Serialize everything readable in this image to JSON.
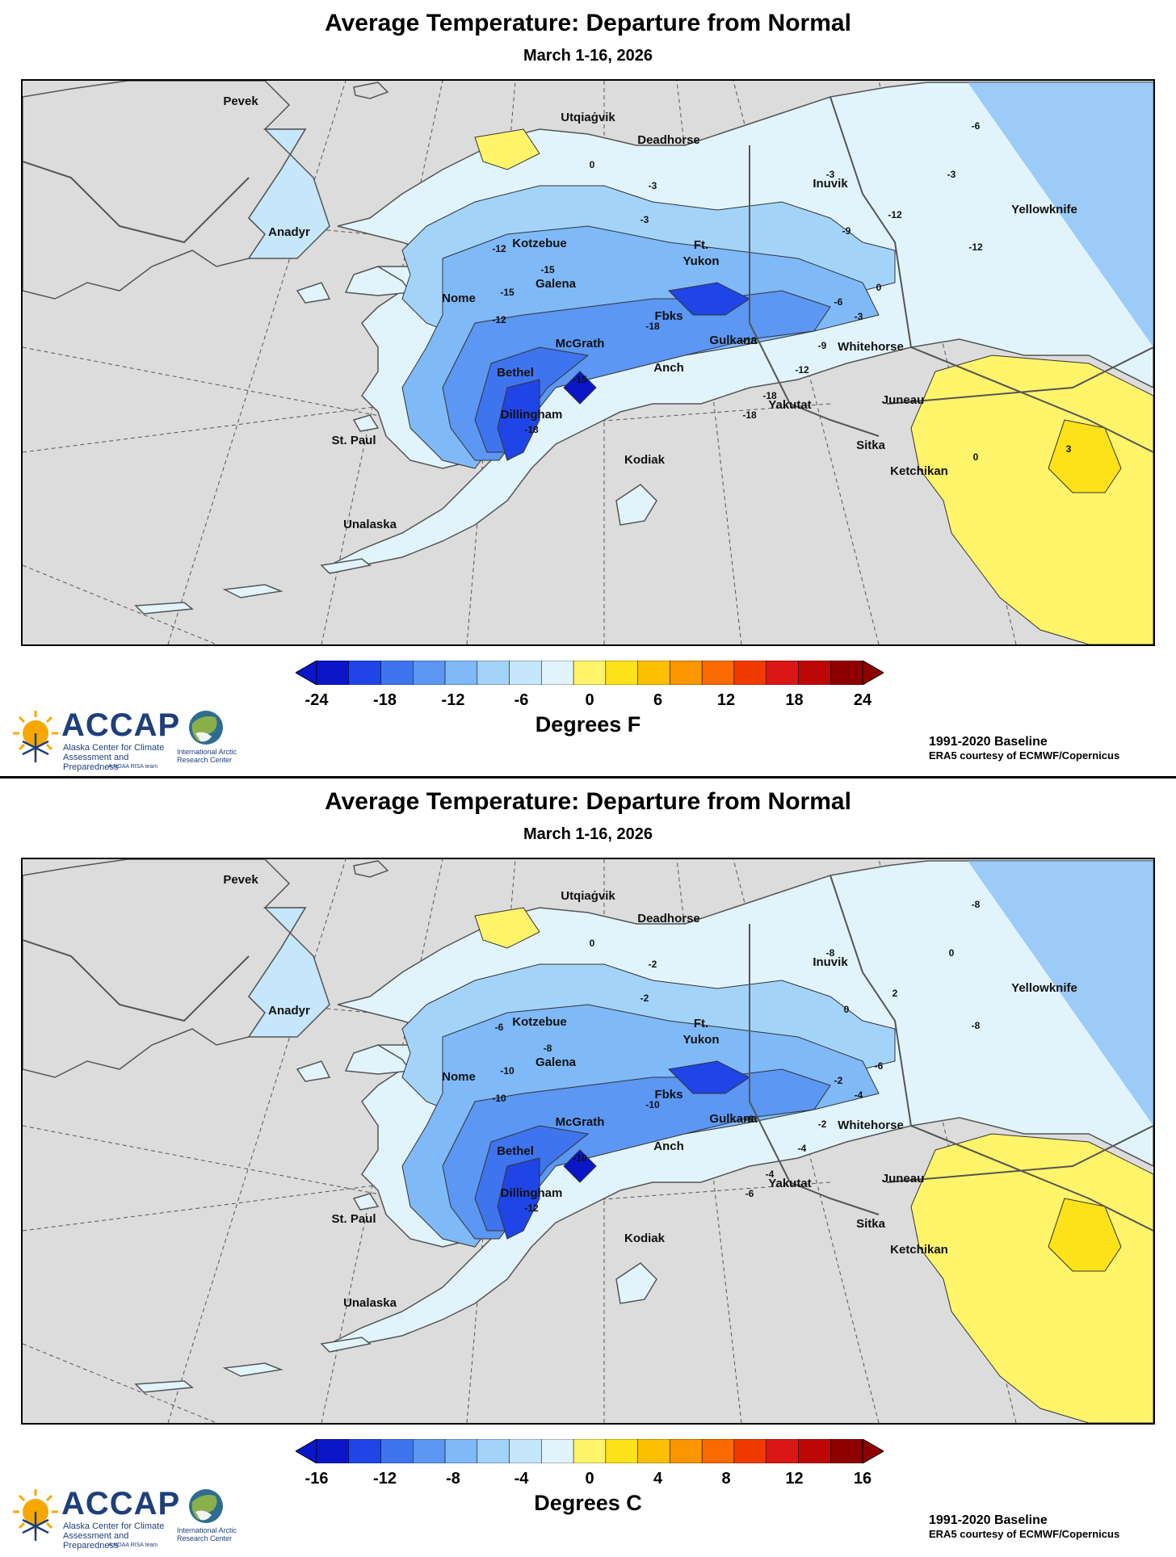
{
  "panels": [
    {
      "title": "Average Temperature: Departure from Normal",
      "subtitle": "March 1-16, 2026",
      "unit_label": "Degrees F",
      "colorbar_ticks": [
        "-24",
        "-18",
        "-12",
        "-6",
        "0",
        "6",
        "12",
        "18",
        "24"
      ],
      "contour_labels": [
        "0",
        "-3",
        "-3",
        "-12",
        "-12",
        "-15",
        "-15",
        "-12",
        "-18",
        "-15",
        "-18",
        "-18",
        "-18",
        "-18",
        "-12",
        "-9",
        "-6",
        "-3",
        "0",
        "-3",
        "-6",
        "-9",
        "-12",
        "-3",
        "0",
        "3"
      ],
      "baseline": "1991-2020 Baseline",
      "source": "ERA5 courtesy of ECMWF/Copernicus"
    },
    {
      "title": "Average Temperature: Departure from Normal",
      "subtitle": "March 1-16, 2026",
      "unit_label": "Degrees C",
      "colorbar_ticks": [
        "-16",
        "-12",
        "-8",
        "-4",
        "0",
        "4",
        "8",
        "12",
        "16"
      ],
      "contour_labels": [
        "0",
        "-2",
        "-2",
        "-6",
        "-8",
        "-8",
        "-10",
        "-10",
        "-10",
        "-10",
        "-12",
        "-8",
        "-6",
        "-4",
        "-4",
        "-2",
        "-2",
        "-4",
        "-6",
        "-8",
        "-8",
        "0",
        "2",
        "0"
      ],
      "baseline": "1991-2020 Baseline",
      "source": "ERA5 courtesy of ECMWF/Copernicus"
    }
  ],
  "cities": [
    "Pevek",
    "Utqiaġvik",
    "Deadhorse",
    "Inuvik",
    "Yellowknife",
    "Anadyr",
    "Kotzebue",
    "Ft.",
    "Yukon",
    "Galena",
    "Nome",
    "Fbks",
    "Gulkana",
    "McGrath",
    "Whitehorse",
    "Bethel",
    "Anch",
    "Juneau",
    "Dillingham",
    "Yakutat",
    "St. Paul",
    "Sitka",
    "Kodiak",
    "Ketchikan",
    "Unalaska"
  ],
  "colorbar_colors": [
    "#0a16c8",
    "#1f45e6",
    "#3f74ef",
    "#5b97f3",
    "#7fb9f7",
    "#a4d3fa",
    "#c6e6fb",
    "#e2f4fb",
    "#fff46a",
    "#fde21a",
    "#fcc000",
    "#fb9500",
    "#f96a00",
    "#f13a00",
    "#db1616",
    "#bd0808",
    "#8e0000"
  ],
  "logos": {
    "accap_name": "ACCAP",
    "accap_line1": "Alaska Center for Climate",
    "accap_line2": "Assessment and Preparedness",
    "accap_noaa": "A NOAA RISA team",
    "iarc_line1": "International Arctic",
    "iarc_line2": "Research Center"
  }
}
